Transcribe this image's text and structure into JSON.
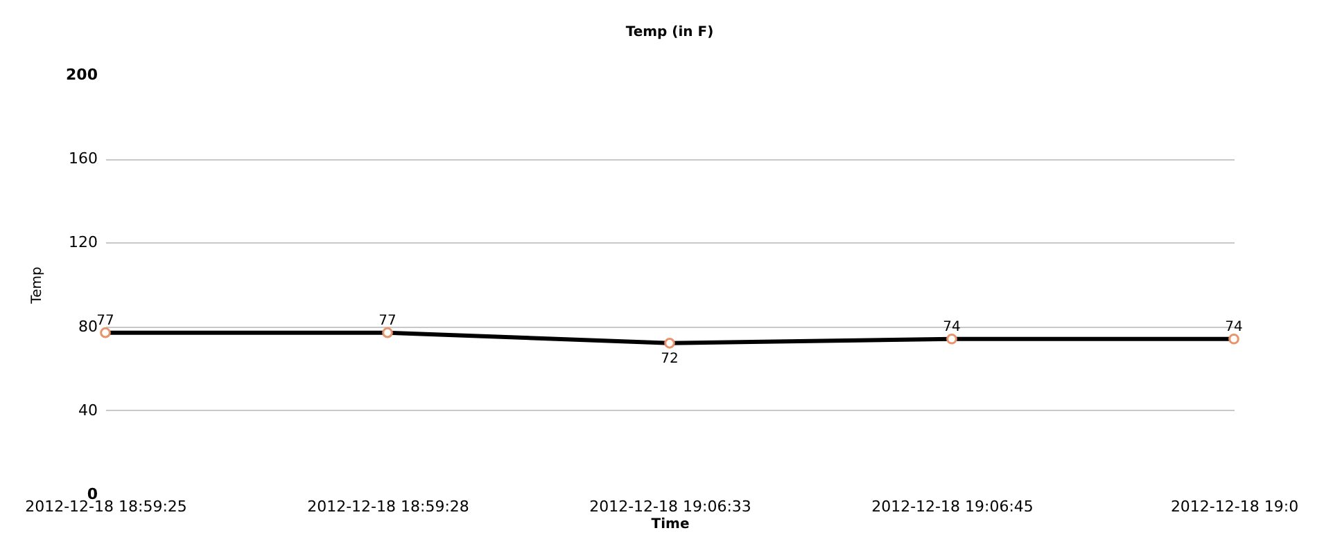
{
  "chart_data": {
    "type": "line",
    "title": "Temp (in F)",
    "xlabel": "Time",
    "ylabel": "Temp",
    "categories": [
      "2012-12-18 18:59:25",
      "2012-12-18 18:59:28",
      "2012-12-18 19:06:33",
      "2012-12-18 19:06:45",
      "2012-12-18 19:0"
    ],
    "series": [
      {
        "color": "#000000",
        "values": [
          77,
          77,
          72,
          74,
          74
        ]
      }
    ],
    "ylim": [
      0,
      200
    ],
    "yticks": [
      0,
      40,
      80,
      120,
      160,
      200
    ],
    "grid": "y",
    "marker": "circle",
    "line_style": "solid",
    "data_labels": true
  }
}
